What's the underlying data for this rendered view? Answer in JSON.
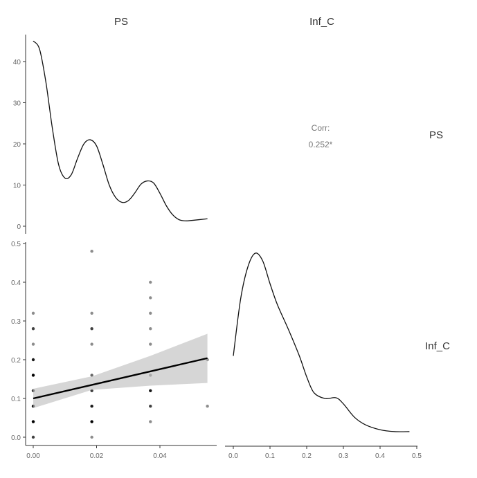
{
  "chart_data": {
    "type": "scatter-matrix",
    "variables": [
      "PS",
      "Inf_C"
    ],
    "column_labels": [
      "PS",
      "Inf_C"
    ],
    "row_labels": [
      "PS",
      "Inf_C"
    ],
    "correlation": {
      "label": "Corr:",
      "value": "0.252*"
    },
    "ps_density": {
      "type": "line",
      "xlim": [
        0,
        0.055
      ],
      "ylim": [
        0,
        45
      ],
      "yticks": [
        "0",
        "10",
        "20",
        "30",
        "40"
      ],
      "ytick_values": [
        0,
        10,
        20,
        30,
        40
      ],
      "points": [
        [
          0,
          45
        ],
        [
          0.002,
          43
        ],
        [
          0.004,
          35
        ],
        [
          0.006,
          24
        ],
        [
          0.008,
          15
        ],
        [
          0.01,
          11.7
        ],
        [
          0.012,
          12.5
        ],
        [
          0.014,
          16.5
        ],
        [
          0.016,
          20
        ],
        [
          0.018,
          21
        ],
        [
          0.02,
          19.5
        ],
        [
          0.022,
          15
        ],
        [
          0.024,
          10
        ],
        [
          0.026,
          7
        ],
        [
          0.028,
          5.8
        ],
        [
          0.03,
          6.2
        ],
        [
          0.032,
          8
        ],
        [
          0.034,
          10.2
        ],
        [
          0.036,
          11
        ],
        [
          0.038,
          10.5
        ],
        [
          0.04,
          8
        ],
        [
          0.042,
          5
        ],
        [
          0.044,
          2.8
        ],
        [
          0.046,
          1.6
        ],
        [
          0.048,
          1.3
        ],
        [
          0.05,
          1.4
        ],
        [
          0.055,
          1.8
        ]
      ]
    },
    "scatter": {
      "type": "scatter",
      "xlim": [
        0,
        0.055
      ],
      "ylim": [
        0,
        0.5
      ],
      "xticks": [
        "0.00",
        "0.02",
        "0.04"
      ],
      "xtick_values": [
        0,
        0.02,
        0.04
      ],
      "yticks": [
        "0.0",
        "0.1",
        "0.2",
        "0.3",
        "0.4",
        "0.5"
      ],
      "ytick_values": [
        0,
        0.1,
        0.2,
        0.3,
        0.4,
        0.5
      ],
      "points": [
        {
          "x": 0,
          "y": 0,
          "n": 3
        },
        {
          "x": 0,
          "y": 0.04,
          "n": 5
        },
        {
          "x": 0,
          "y": 0.08,
          "n": 4
        },
        {
          "x": 0,
          "y": 0.12,
          "n": 3
        },
        {
          "x": 0,
          "y": 0.16,
          "n": 5
        },
        {
          "x": 0,
          "y": 0.2,
          "n": 4
        },
        {
          "x": 0,
          "y": 0.24,
          "n": 1
        },
        {
          "x": 0,
          "y": 0.28,
          "n": 3
        },
        {
          "x": 0,
          "y": 0.32,
          "n": 1
        },
        {
          "x": 0.0185,
          "y": 0,
          "n": 1
        },
        {
          "x": 0.0185,
          "y": 0.04,
          "n": 5
        },
        {
          "x": 0.0185,
          "y": 0.08,
          "n": 4
        },
        {
          "x": 0.0185,
          "y": 0.12,
          "n": 3
        },
        {
          "x": 0.0185,
          "y": 0.16,
          "n": 2
        },
        {
          "x": 0.0185,
          "y": 0.24,
          "n": 1
        },
        {
          "x": 0.0185,
          "y": 0.28,
          "n": 3
        },
        {
          "x": 0.0185,
          "y": 0.32,
          "n": 1
        },
        {
          "x": 0.0185,
          "y": 0.48,
          "n": 1
        },
        {
          "x": 0.037,
          "y": 0.04,
          "n": 1
        },
        {
          "x": 0.037,
          "y": 0.08,
          "n": 3
        },
        {
          "x": 0.037,
          "y": 0.12,
          "n": 4
        },
        {
          "x": 0.037,
          "y": 0.16,
          "n": 1
        },
        {
          "x": 0.037,
          "y": 0.24,
          "n": 1
        },
        {
          "x": 0.037,
          "y": 0.28,
          "n": 1
        },
        {
          "x": 0.037,
          "y": 0.32,
          "n": 1
        },
        {
          "x": 0.037,
          "y": 0.36,
          "n": 1
        },
        {
          "x": 0.037,
          "y": 0.4,
          "n": 1
        },
        {
          "x": 0.055,
          "y": 0.08,
          "n": 1
        },
        {
          "x": 0.055,
          "y": 0.2,
          "n": 1
        }
      ],
      "fit_line": [
        [
          0,
          0.1
        ],
        [
          0.055,
          0.204
        ]
      ],
      "confidence_band": {
        "x": [
          0,
          0.0185,
          0.037,
          0.055
        ],
        "lower": [
          0.075,
          0.122,
          0.133,
          0.14
        ],
        "upper": [
          0.125,
          0.157,
          0.21,
          0.267
        ]
      }
    },
    "infc_density": {
      "type": "line",
      "xlim": [
        0,
        0.5
      ],
      "ylim": [
        0,
        5
      ],
      "xticks": [
        "0.0",
        "0.1",
        "0.2",
        "0.3",
        "0.4",
        "0.5"
      ],
      "xtick_values": [
        0,
        0.1,
        0.2,
        0.3,
        0.4,
        0.5
      ],
      "points": [
        [
          0,
          2.1
        ],
        [
          0.02,
          3.6
        ],
        [
          0.04,
          4.45
        ],
        [
          0.06,
          4.8
        ],
        [
          0.08,
          4.6
        ],
        [
          0.1,
          4.0
        ],
        [
          0.12,
          3.45
        ],
        [
          0.15,
          2.8
        ],
        [
          0.18,
          2.1
        ],
        [
          0.2,
          1.55
        ],
        [
          0.22,
          1.13
        ],
        [
          0.25,
          0.98
        ],
        [
          0.28,
          1.0
        ],
        [
          0.3,
          0.84
        ],
        [
          0.33,
          0.49
        ],
        [
          0.36,
          0.29
        ],
        [
          0.4,
          0.16
        ],
        [
          0.44,
          0.11
        ],
        [
          0.48,
          0.11
        ]
      ]
    }
  }
}
